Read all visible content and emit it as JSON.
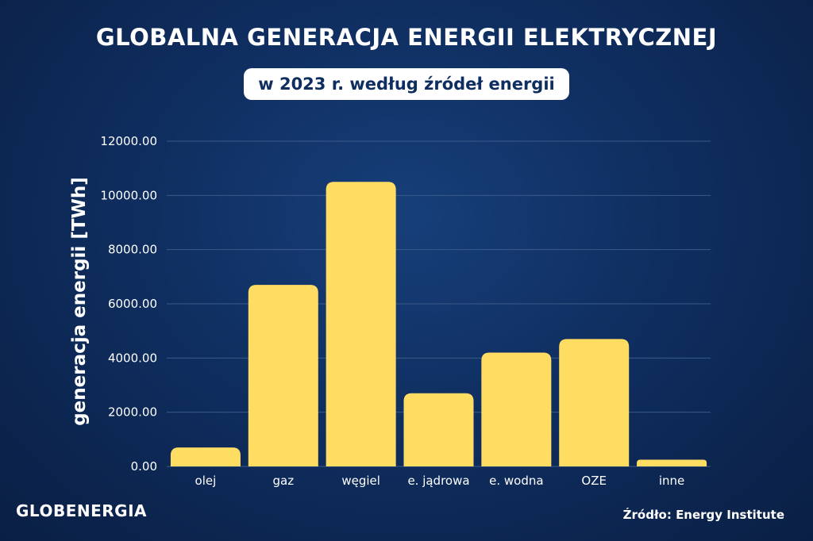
{
  "header": {
    "title": "GLOBALNA GENERACJA ENERGII ELEKTRYCZNEJ",
    "subtitle": "w 2023 r. według źródeł energii"
  },
  "footer": {
    "logo": "GLOBENERGIA",
    "source": "Źródło: Energy Institute"
  },
  "colors": {
    "bar": "#ffdd63",
    "grid": "#3a5a8a"
  },
  "chart_data": {
    "type": "bar",
    "title": "GLOBALNA GENERACJA ENERGII ELEKTRYCZNEJ",
    "subtitle": "w 2023 r. według źródeł energii",
    "xlabel": "",
    "ylabel": "generacja energii [TWh]",
    "categories": [
      "olej",
      "gaz",
      "węgiel",
      "e. jądrowa",
      "e. wodna",
      "OZE",
      "inne"
    ],
    "values": [
      700,
      6700,
      10500,
      2700,
      4200,
      4700,
      250
    ],
    "ylim": [
      0,
      12000
    ],
    "yticks": [
      "0.00",
      "2000.00",
      "4000.00",
      "6000.00",
      "8000.00",
      "10000.00",
      "12000.00"
    ],
    "grid": true,
    "legend": "none"
  }
}
